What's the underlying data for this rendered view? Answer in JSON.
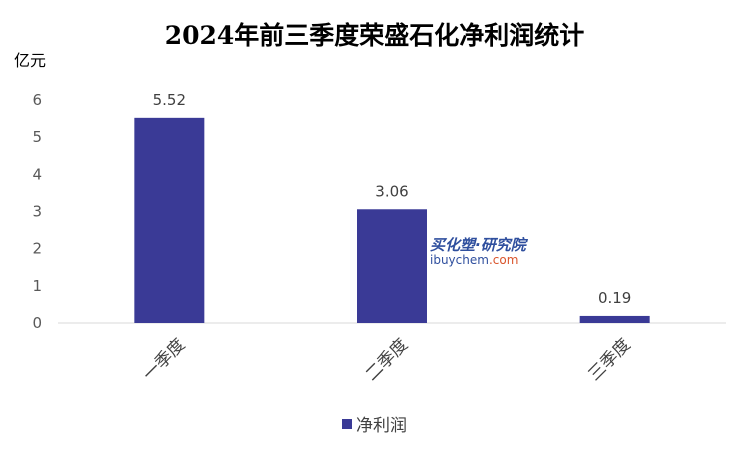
{
  "chart_data": {
    "type": "bar",
    "title": "2024年前三季度荣盛石化净利润统计",
    "ylabel": "亿元",
    "xlabel": "",
    "categories": [
      "一季度",
      "二季度",
      "三季度"
    ],
    "series": [
      {
        "name": "净利润",
        "values": [
          5.52,
          3.06,
          0.19
        ],
        "color": "#3a3a96"
      }
    ],
    "ylim": [
      0,
      6
    ],
    "yticks": [
      0,
      1,
      2,
      3,
      4,
      5,
      6
    ],
    "data_labels": [
      "5.52",
      "3.06",
      "0.19"
    ],
    "grid": false,
    "legend": "bottom"
  },
  "watermark": {
    "text_cn": "买化塑·研究院",
    "text_en_main": "ibuychem",
    "text_en_suffix": ".com",
    "color": "#2f4f9e",
    "accent": "#d9542b"
  }
}
